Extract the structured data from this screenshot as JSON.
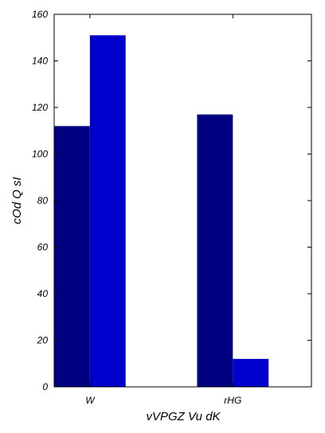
{
  "chart_data": {
    "type": "bar",
    "categories": [
      "W",
      "rHG"
    ],
    "series": [
      {
        "values": [
          112,
          117
        ],
        "color": "#000080"
      },
      {
        "values": [
          151,
          12
        ],
        "color": "#0000cc"
      }
    ],
    "xlabel": "vVPGZ  Vu  dK",
    "ylabel": "cOd Q sI",
    "ylim": [
      0,
      160
    ],
    "yticks": [
      0,
      20,
      40,
      60,
      80,
      100,
      120,
      140,
      160
    ],
    "grid": false
  }
}
